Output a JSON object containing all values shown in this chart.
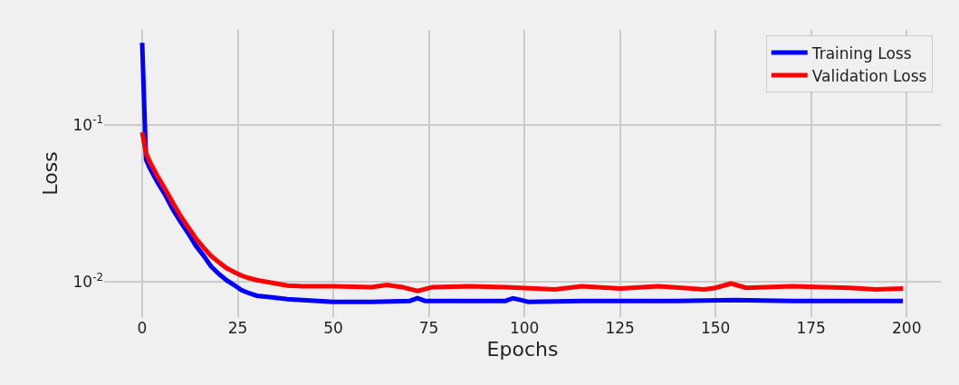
{
  "chart_data": {
    "type": "line",
    "xlabel": "Epochs",
    "ylabel": "Loss",
    "log": "y",
    "grid": true,
    "legend": "top right",
    "marker": "none",
    "line_style": "solid",
    "xlim": [
      -9.95,
      208.95
    ],
    "xticks": [
      0,
      25,
      50,
      75,
      100,
      125,
      150,
      175,
      200
    ],
    "ylim": [
      0.006,
      0.4
    ],
    "yticks": [
      {
        "value": 0.1,
        "label": "10$^{-1}$"
      },
      {
        "value": 0.01,
        "label": "10$^{-2}$"
      }
    ],
    "series": [
      {
        "name": "Training Loss",
        "color": "#0000ff",
        "x": [
          0,
          1,
          2,
          4,
          6,
          8,
          10,
          12,
          14,
          16,
          18,
          20,
          22,
          24,
          26,
          28,
          30,
          34,
          38,
          42,
          46,
          50,
          60,
          70,
          72,
          74,
          85,
          95,
          97,
          99,
          101,
          115,
          130,
          140,
          155,
          170,
          185,
          199
        ],
        "values": [
          0.331,
          0.06,
          0.053,
          0.043,
          0.0359,
          0.029,
          0.0242,
          0.0205,
          0.0171,
          0.0148,
          0.0126,
          0.0113,
          0.0103,
          0.0096,
          0.0089,
          0.0085,
          0.0082,
          0.008,
          0.0078,
          0.0077,
          0.0076,
          0.0075,
          0.0075,
          0.0076,
          0.0079,
          0.0076,
          0.0076,
          0.0076,
          0.0079,
          0.0077,
          0.0075,
          0.0076,
          0.0076,
          0.0076,
          0.0077,
          0.0076,
          0.0076,
          0.0076
        ]
      },
      {
        "name": "Validation Loss",
        "color": "#ff0000",
        "x": [
          0,
          1,
          2,
          4,
          6,
          8,
          10,
          12,
          14,
          16,
          18,
          20,
          22,
          24,
          26,
          28,
          30,
          34,
          38,
          42,
          50,
          60,
          64,
          68,
          72,
          76,
          85,
          95,
          108,
          115,
          125,
          135,
          147,
          150,
          154,
          158,
          170,
          185,
          192,
          199
        ],
        "values": [
          0.0896,
          0.066,
          0.058,
          0.047,
          0.039,
          0.032,
          0.0264,
          0.0224,
          0.019,
          0.0166,
          0.0147,
          0.0134,
          0.0123,
          0.0116,
          0.011,
          0.0106,
          0.0103,
          0.0099,
          0.0095,
          0.0094,
          0.0094,
          0.0093,
          0.0096,
          0.0093,
          0.0088,
          0.0093,
          0.0094,
          0.0093,
          0.009,
          0.0094,
          0.0091,
          0.0094,
          0.009,
          0.0092,
          0.0098,
          0.0092,
          0.0094,
          0.0092,
          0.009,
          0.0091
        ]
      }
    ]
  }
}
